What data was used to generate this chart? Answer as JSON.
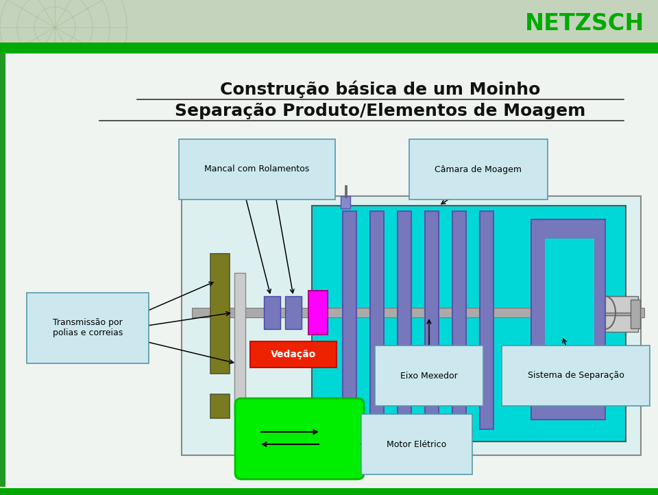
{
  "title_line1": "Construção básica de um Moinho",
  "title_line2": "Separação Produto/Elementos de Moagem",
  "bg_top_color": "#b8cdb8",
  "green_bar_color": "#00aa00",
  "white_bg": "#f0f4f0",
  "netzsch_color": "#00aa00",
  "diagram_bg": "#e0f4f4",
  "cyan_chamber": "#00d8d8",
  "purple_disk": "#7777bb",
  "magenta_seal": "#ff00ff",
  "red_seal_box": "#ee2200",
  "green_motor": "#00ee00",
  "olive_color": "#7a7a20",
  "gray_color": "#bbbbbb",
  "label_fc": "#cce8ee",
  "label_ec": "#5599aa",
  "labels": {
    "mancal": "Mancal com Rolamentos",
    "camara": "Câmara de Moagem",
    "transmissao": "Transmissão por\npolias e correias",
    "vedacao": "Vedação",
    "eixo": "Eixo Mexedor",
    "separacao": "Sistema de Separação",
    "motor": "Motor Elétrico"
  }
}
